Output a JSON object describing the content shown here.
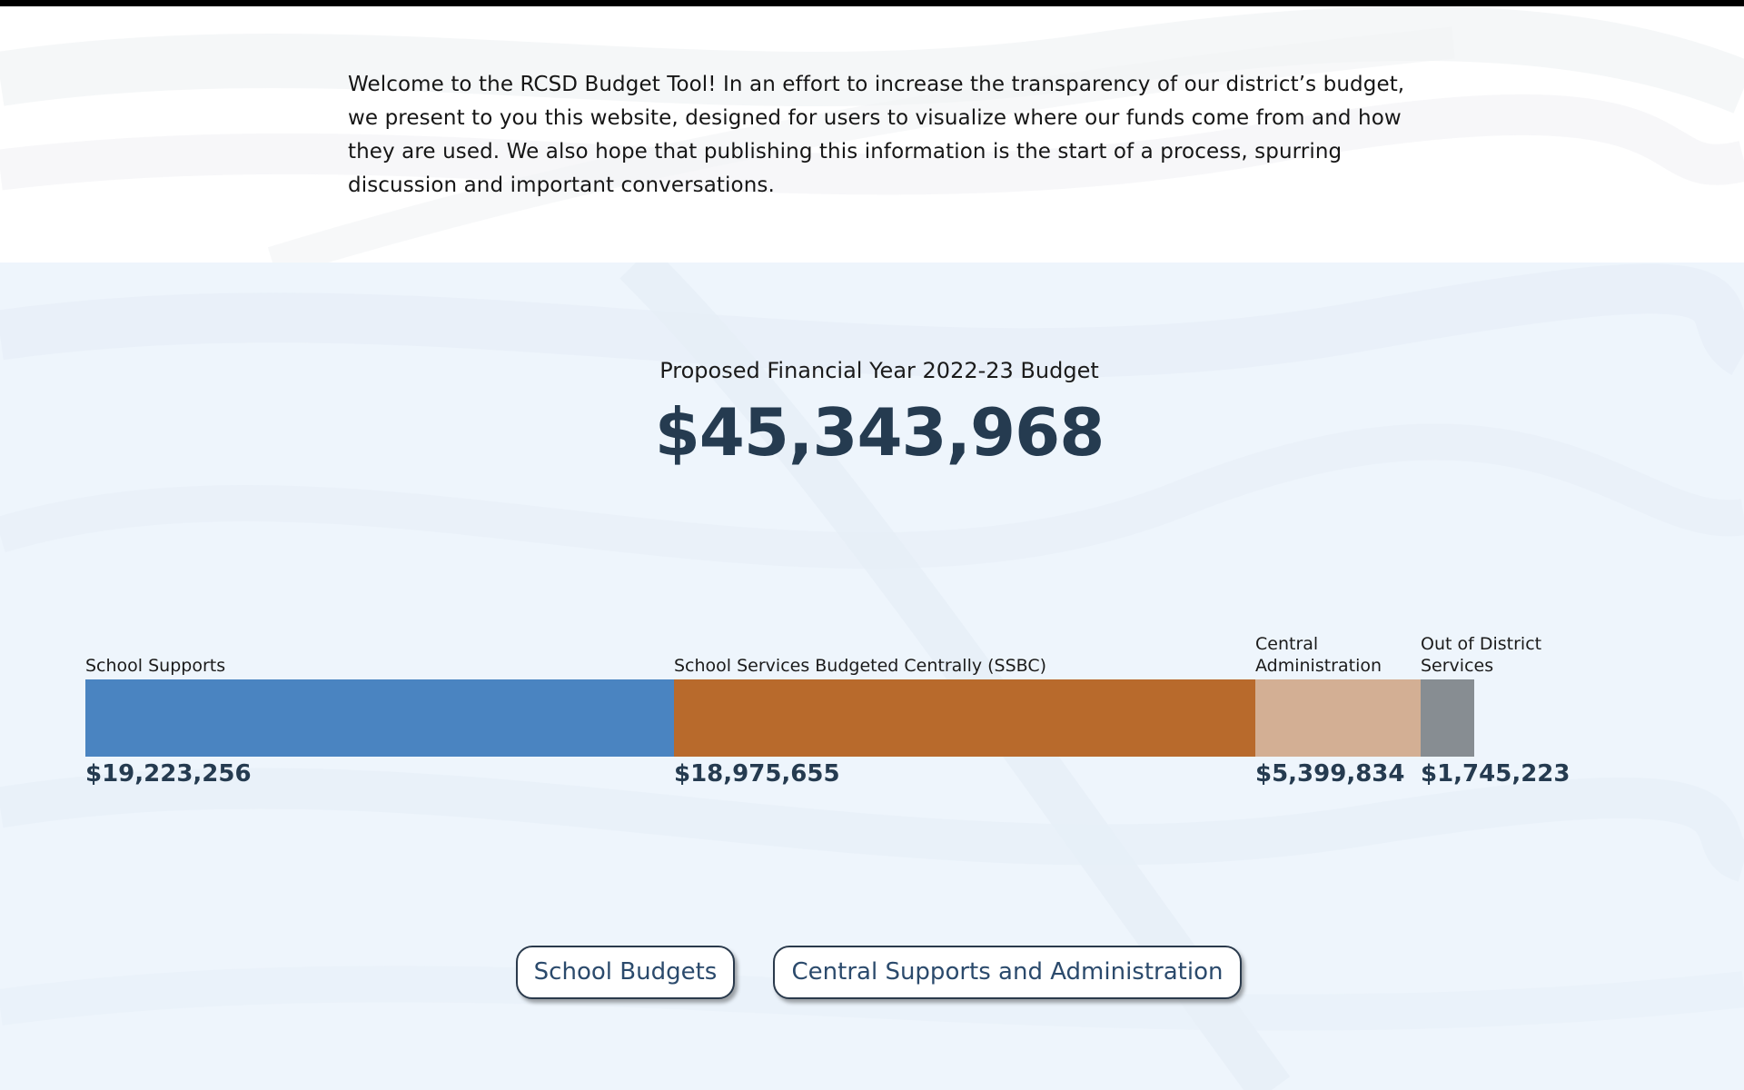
{
  "intro": {
    "text": "Welcome to the RCSD Budget Tool! In an effort to increase the transparency of our district’s budget, we present to you this website, designed for users to visualize where our funds come from and how they are used. We also hope that publishing this information is the start of a process, spurring discussion and important conversations."
  },
  "budget": {
    "subtitle": "Proposed Financial Year 2022-23 Budget",
    "total": "$45,343,968"
  },
  "chart_data": {
    "type": "bar",
    "orientation": "horizontal-stacked",
    "categories": [
      "School Supports",
      "School Services Budgeted Centrally (SSBC)",
      "Central Administration",
      "Out of District Services"
    ],
    "values": [
      19223256,
      18975655,
      5399834,
      1745223
    ],
    "value_labels": [
      "$19,223,256",
      "$18,975,655",
      "$5,399,834",
      "$1,745,223"
    ],
    "colors": [
      "#4a84c1",
      "#b86a2c",
      "#d3af94",
      "#878d92"
    ]
  },
  "buttons": {
    "school_budgets": "School Budgets",
    "central_supports": "Central Supports and Administration"
  },
  "colors": {
    "accent_dark": "#253b50",
    "button_text": "#2b4a6c",
    "section_bg": "#eef5fc"
  }
}
